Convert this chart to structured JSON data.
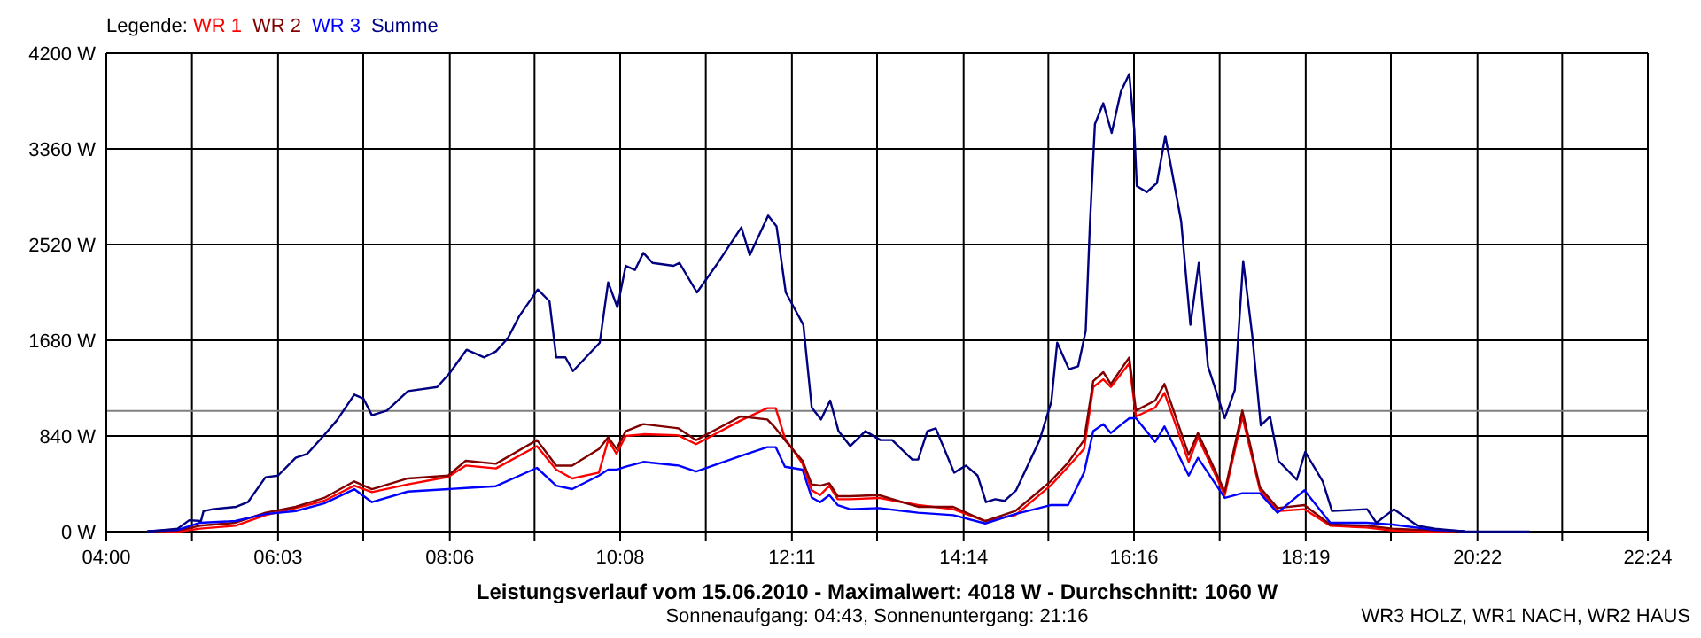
{
  "chart_data": {
    "type": "line",
    "title": "Leistungsverlauf vom 15.06.2010 - Maximalwert: 4018 W - Durchschnitt: 1060 W",
    "subtitle": "Sonnenaufgang: 04:43, Sonnenuntergang: 21:16",
    "legend_title": "Legende:",
    "annotations": [
      "WR3 HOLZ, WR1 NACH, WR2 HAUS"
    ],
    "x": [
      4.49,
      4.85,
      5.12,
      5.54,
      5.9,
      6.26,
      6.6,
      6.96,
      7.17,
      7.6,
      8.08,
      8.29,
      8.65,
      9.14,
      9.37,
      9.56,
      9.88,
      9.99,
      10.09,
      10.2,
      10.41,
      10.83,
      11.04,
      11.57,
      11.89,
      11.99,
      12.1,
      12.31,
      12.42,
      12.52,
      12.63,
      12.73,
      12.88,
      13.22,
      13.69,
      14.11,
      14.49,
      14.85,
      15.27,
      15.48,
      15.67,
      15.78,
      15.9,
      15.99,
      16.21,
      16.29,
      16.52,
      16.63,
      16.92,
      17.03,
      17.35,
      17.56,
      17.77,
      17.98,
      18.3,
      18.61,
      19.04,
      19.35,
      19.86,
      20.22
    ],
    "series": [
      {
        "name": "WR 1",
        "color": "#ff0000",
        "values": [
          0,
          0,
          26,
          52,
          145,
          207,
          270,
          404,
          347,
          415,
          480,
          580,
          555,
          751,
          544,
          467,
          518,
          804,
          684,
          840,
          855,
          845,
          768,
          975,
          1084,
          1084,
          820,
          596,
          363,
          321,
          404,
          285,
          285,
          296,
          233,
          197,
          93,
          145,
          404,
          570,
          726,
          1270,
          1337,
          1270,
          1478,
          1011,
          1089,
          1218,
          612,
          829,
          321,
          1011,
          363,
          181,
          197,
          52,
          36,
          10,
          0,
          0
        ]
      },
      {
        "name": "WR 2",
        "color": "#800000",
        "values": [
          0,
          10,
          52,
          78,
          166,
          218,
          296,
          441,
          373,
          467,
          492,
          622,
          596,
          804,
          580,
          580,
          726,
          829,
          726,
          882,
          944,
          907,
          804,
          1011,
          985,
          907,
          804,
          622,
          415,
          404,
          425,
          311,
          311,
          321,
          218,
          218,
          93,
          181,
          441,
          606,
          804,
          1322,
          1400,
          1296,
          1529,
          1063,
          1151,
          1296,
          674,
          866,
          352,
          1063,
          389,
          207,
          233,
          62,
          52,
          26,
          10,
          0
        ]
      },
      {
        "name": "WR 3",
        "color": "#0000ff",
        "values": [
          5,
          15,
          78,
          93,
          155,
          181,
          248,
          373,
          259,
          352,
          373,
          383,
          399,
          560,
          404,
          373,
          492,
          544,
          544,
          570,
          612,
          580,
          528,
          664,
          742,
          742,
          570,
          544,
          300,
          259,
          321,
          233,
          197,
          207,
          166,
          145,
          72,
          155,
          233,
          233,
          518,
          882,
          944,
          866,
          996,
          996,
          788,
          923,
          492,
          648,
          296,
          337,
          337,
          166,
          363,
          78,
          78,
          62,
          15,
          5
        ]
      },
      {
        "name": "Summe",
        "color": "#000080",
        "x": [
          4.49,
          4.85,
          4.99,
          5.13,
          5.16,
          5.27,
          5.55,
          5.69,
          5.9,
          6.05,
          6.26,
          6.4,
          6.61,
          6.75,
          6.96,
          7.07,
          7.17,
          7.35,
          7.6,
          7.95,
          8.09,
          8.3,
          8.51,
          8.65,
          8.79,
          8.93,
          9.15,
          9.29,
          9.37,
          9.48,
          9.57,
          9.89,
          9.99,
          10.1,
          10.2,
          10.31,
          10.41,
          10.52,
          10.77,
          10.84,
          11.05,
          11.3,
          11.58,
          11.68,
          11.9,
          12.0,
          12.11,
          12.32,
          12.42,
          12.53,
          12.64,
          12.74,
          12.88,
          13.06,
          13.24,
          13.38,
          13.62,
          13.69,
          13.8,
          13.9,
          14.12,
          14.26,
          14.4,
          14.5,
          14.61,
          14.72,
          14.86,
          15.14,
          15.28,
          15.35,
          15.49,
          15.6,
          15.69,
          15.74,
          15.8,
          15.9,
          16.0,
          16.11,
          16.21,
          16.27,
          16.3,
          16.42,
          16.54,
          16.64,
          16.83,
          16.94,
          17.04,
          17.15,
          17.35,
          17.47,
          17.57,
          17.68,
          17.78,
          17.89,
          17.99,
          18.21,
          18.31,
          18.52,
          18.63,
          19.05,
          19.16,
          19.37,
          19.65,
          19.86,
          20.22,
          20.99
        ],
        "values": [
          0,
          25,
          100,
          93,
          180,
          197,
          218,
          259,
          477,
          492,
          648,
          684,
          856,
          975,
          1203,
          1167,
          1022,
          1063,
          1234,
          1270,
          1384,
          1597,
          1530,
          1582,
          1696,
          1893,
          2126,
          2022,
          1530,
          1530,
          1410,
          1659,
          2188,
          1970,
          2333,
          2297,
          2447,
          2359,
          2333,
          2359,
          2100,
          2359,
          2671,
          2427,
          2774,
          2680,
          2100,
          1815,
          1089,
          985,
          1151,
          882,
          751,
          882,
          804,
          804,
          633,
          633,
          882,
          907,
          518,
          580,
          492,
          259,
          285,
          270,
          363,
          804,
          1141,
          1659,
          1426,
          1452,
          1763,
          2696,
          3578,
          3760,
          3500,
          3863,
          4018,
          3526,
          3033,
          2981,
          3059,
          3474,
          2722,
          1815,
          2359,
          1452,
          996,
          1244,
          2375,
          1711,
          933,
          1011,
          622,
          456,
          700,
          441,
          182,
          197,
          78,
          197,
          52,
          26,
          0,
          0
        ]
      }
    ],
    "xlim": [
      4,
      22.4
    ],
    "ylim": [
      0,
      4200
    ],
    "xticks": [
      {
        "value": 4,
        "label": "04:00"
      },
      {
        "value": 5.0222,
        "label": null
      },
      {
        "value": 6.05,
        "label": "06:03"
      },
      {
        "value": 7.0667,
        "label": null
      },
      {
        "value": 8.1,
        "label": "08:06"
      },
      {
        "value": 9.1111,
        "label": null
      },
      {
        "value": 10.1333,
        "label": "10:08"
      },
      {
        "value": 11.1556,
        "label": null
      },
      {
        "value": 12.1833,
        "label": "12:11"
      },
      {
        "value": 13.2,
        "label": null
      },
      {
        "value": 14.2333,
        "label": "14:14"
      },
      {
        "value": 15.2444,
        "label": null
      },
      {
        "value": 16.2667,
        "label": "16:16"
      },
      {
        "value": 17.2889,
        "label": null
      },
      {
        "value": 18.3167,
        "label": "18:19"
      },
      {
        "value": 19.3333,
        "label": null
      },
      {
        "value": 20.3667,
        "label": "20:22"
      },
      {
        "value": 21.3778,
        "label": null
      },
      {
        "value": 22.4,
        "label": "22:24"
      }
    ],
    "yticks": [
      {
        "value": 0,
        "label": "0 W"
      },
      {
        "value": 840,
        "label": "840 W"
      },
      {
        "value": 1680,
        "label": "1680 W"
      },
      {
        "value": 2520,
        "label": "2520 W"
      },
      {
        "value": 3360,
        "label": "3360 W"
      },
      {
        "value": 4200,
        "label": "4200 W"
      }
    ],
    "ref_lines": [
      {
        "axis": "y",
        "value": 1060,
        "color": "#808080"
      }
    ],
    "grid": true,
    "legend": "top left",
    "marker": "none",
    "line_style": "solid"
  }
}
